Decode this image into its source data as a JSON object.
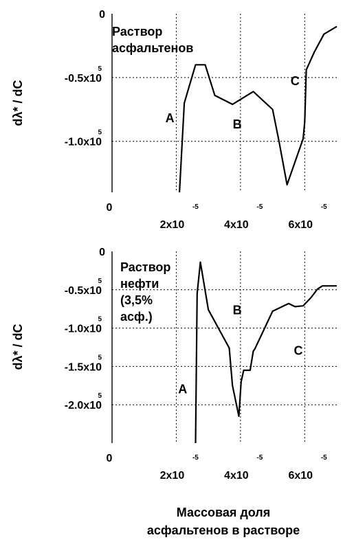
{
  "chart_data": [
    {
      "type": "line",
      "ylabel": "dλ* / dC",
      "xlim": [
        0,
        7e-05
      ],
      "ylim": [
        -140000,
        0
      ],
      "x_ticks": [
        {
          "value": 0,
          "label": "0",
          "exp": ""
        },
        {
          "value": 2e-05,
          "label": "2x10",
          "exp": "-5"
        },
        {
          "value": 4e-05,
          "label": "4x10",
          "exp": "-5"
        },
        {
          "value": 6e-05,
          "label": "6x10",
          "exp": "-5"
        }
      ],
      "y_ticks": [
        {
          "value": 0,
          "label": "0",
          "exp": ""
        },
        {
          "value": -50000,
          "label": "-0.5x10",
          "exp": "5"
        },
        {
          "value": -100000,
          "label": "-1.0x10",
          "exp": "5"
        }
      ],
      "grid": true,
      "legend_lines": [
        "Раствор",
        "асфальтенов"
      ],
      "annotations": [
        {
          "text": "A",
          "x": 1.8e-05,
          "y": -85000
        },
        {
          "text": "B",
          "x": 3.9e-05,
          "y": -90000
        },
        {
          "text": "C",
          "x": 5.7e-05,
          "y": -56000
        }
      ],
      "series": [
        {
          "x": [
            2.1e-05,
            2.25e-05,
            2.6e-05,
            2.9e-05,
            3.2e-05,
            3.75e-05,
            4.4e-05,
            5e-05,
            5.2e-05,
            5.45e-05,
            5.95e-05,
            6e-05,
            6.05e-05,
            6.3e-05,
            6.6e-05,
            7e-05
          ],
          "y": [
            -140000,
            -70000,
            -40000,
            -40000,
            -64000,
            -71000,
            -61000,
            -75000,
            -100000,
            -134000,
            -98000,
            -85000,
            -44000,
            -30000,
            -16000,
            -10000
          ]
        }
      ]
    },
    {
      "type": "line",
      "ylabel": "dλ* / dC",
      "xlim": [
        0,
        7e-05
      ],
      "ylim": [
        -250000,
        0
      ],
      "x_ticks": [
        {
          "value": 0,
          "label": "0",
          "exp": ""
        },
        {
          "value": 2e-05,
          "label": "2x10",
          "exp": "-5"
        },
        {
          "value": 4e-05,
          "label": "4x10",
          "exp": "-5"
        },
        {
          "value": 6e-05,
          "label": "6x10",
          "exp": "-5"
        }
      ],
      "y_ticks": [
        {
          "value": 0,
          "label": "0",
          "exp": ""
        },
        {
          "value": -50000,
          "label": "-0.5x10",
          "exp": "5"
        },
        {
          "value": -100000,
          "label": "-1.0x10",
          "exp": "5"
        },
        {
          "value": -150000,
          "label": "-1.5x10",
          "exp": "5"
        },
        {
          "value": -200000,
          "label": "-2.0x10",
          "exp": "5"
        }
      ],
      "grid": true,
      "legend_lines": [
        "Раствор",
        "нефти",
        "(3,5%",
        "асф.)"
      ],
      "annotations": [
        {
          "text": "A",
          "x": 2.2e-05,
          "y": -185000
        },
        {
          "text": "B",
          "x": 3.9e-05,
          "y": -82000
        },
        {
          "text": "C",
          "x": 5.8e-05,
          "y": -135000
        }
      ],
      "series": [
        {
          "x": [
            2.6e-05,
            2.65e-05,
            2.75e-05,
            3e-05,
            3.65e-05,
            3.75e-05,
            3.95e-05,
            4.02e-05,
            4.1e-05,
            4.3e-05,
            4.4e-05,
            4.45e-05,
            5e-05,
            5.5e-05,
            5.7e-05,
            5.95e-05,
            6.2e-05,
            6.4e-05,
            6.55e-05,
            7e-05
          ],
          "y": [
            -250000,
            -55000,
            -14000,
            -76000,
            -126000,
            -175000,
            -215000,
            -170000,
            -155000,
            -155000,
            -130000,
            -127000,
            -78000,
            -68000,
            -72000,
            -71000,
            -60000,
            -49000,
            -45000,
            -45000
          ]
        }
      ]
    }
  ],
  "xlabel_lines": [
    "Массовая доля",
    "асфальтенов в растворе"
  ]
}
